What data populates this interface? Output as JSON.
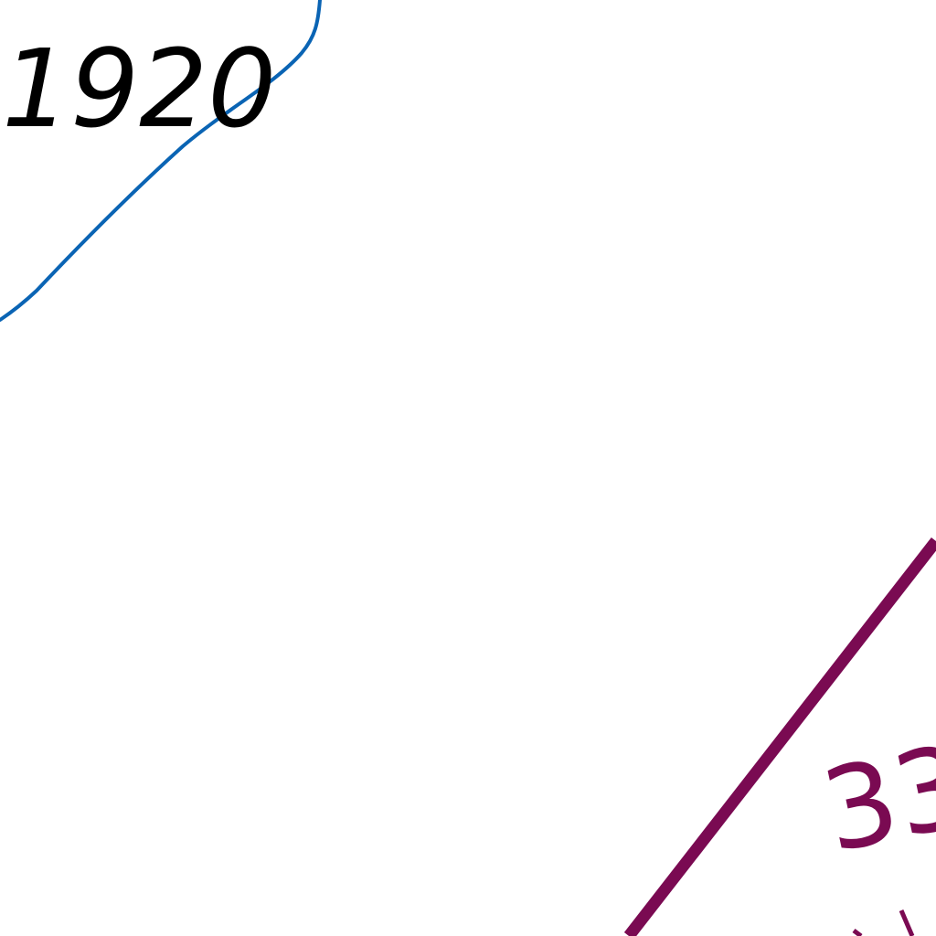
{
  "map": {
    "labels": {
      "year_label": "1920",
      "route_number": "33"
    },
    "colors": {
      "background": "#ffffff",
      "contour_line": "#0a64b4",
      "route_line": "#7a0a52",
      "year_label": "#000000",
      "route_label": "#7a0a52"
    }
  }
}
